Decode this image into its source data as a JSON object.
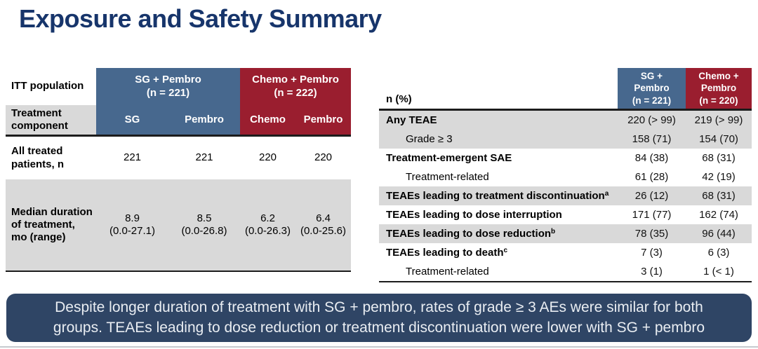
{
  "slide": {
    "title": "Exposure and Safety Summary"
  },
  "colors": {
    "title_navy": "#17356b",
    "header_blue": "#47688e",
    "header_red": "#9a1e2f",
    "row_gray": "#d9d9d9",
    "banner_bg": "#2f4565",
    "banner_text": "#e9edf2"
  },
  "left_table": {
    "corner_label": "ITT population",
    "component_row_label": "Treatment component",
    "group_headers": [
      "SG + Pembro\n(n = 221)",
      "Chemo + Pembro\n(n = 222)"
    ],
    "component_headers": [
      "SG",
      "Pembro",
      "Chemo",
      "Pembro"
    ],
    "rows": [
      {
        "label": "All treated patients, n",
        "values": [
          "221",
          "221",
          "220",
          "220"
        ]
      },
      {
        "label": "Median duration of treatment, mo (range)",
        "values": [
          "8.9\n(0.0-27.1)",
          "8.5\n(0.0-26.8)",
          "6.2\n(0.0-26.3)",
          "6.4\n(0.0-25.6)"
        ]
      }
    ]
  },
  "right_table": {
    "corner_label": "n (%)",
    "col_headers": [
      "SG +\nPembro\n(n = 221)",
      "Chemo +\nPembro\n(n = 220)"
    ],
    "rows": [
      {
        "label": "Any TEAE",
        "sup": "",
        "values": [
          "220 (> 99)",
          "219 (> 99)"
        ]
      },
      {
        "label": "Grade ≥ 3",
        "sup": "",
        "values": [
          "158 (71)",
          "154 (70)"
        ]
      },
      {
        "label": "Treatment-emergent SAE",
        "sup": "",
        "values": [
          "84 (38)",
          "68 (31)"
        ]
      },
      {
        "label": "Treatment-related",
        "sup": "",
        "values": [
          "61 (28)",
          "42 (19)"
        ]
      },
      {
        "label": "TEAEs leading to treatment discontinuation",
        "sup": "a",
        "values": [
          "26 (12)",
          "68 (31)"
        ]
      },
      {
        "label": "TEAEs leading to dose interruption",
        "sup": "",
        "values": [
          "171 (77)",
          "162 (74)"
        ]
      },
      {
        "label": "TEAEs leading to dose reduction",
        "sup": "b",
        "values": [
          "78 (35)",
          "96 (44)"
        ]
      },
      {
        "label": "TEAEs leading to death",
        "sup": "c",
        "values": [
          "7 (3)",
          "6 (3)"
        ]
      },
      {
        "label": "Treatment-related",
        "sup": "",
        "values": [
          "3 (1)",
          "1 (< 1)"
        ]
      }
    ]
  },
  "banner": {
    "text": "Despite longer duration of treatment with SG + pembro, rates of grade ≥ 3 AEs were similar for both\ngroups. TEAEs leading to dose reduction or treatment discontinuation were lower with SG + pembro"
  }
}
